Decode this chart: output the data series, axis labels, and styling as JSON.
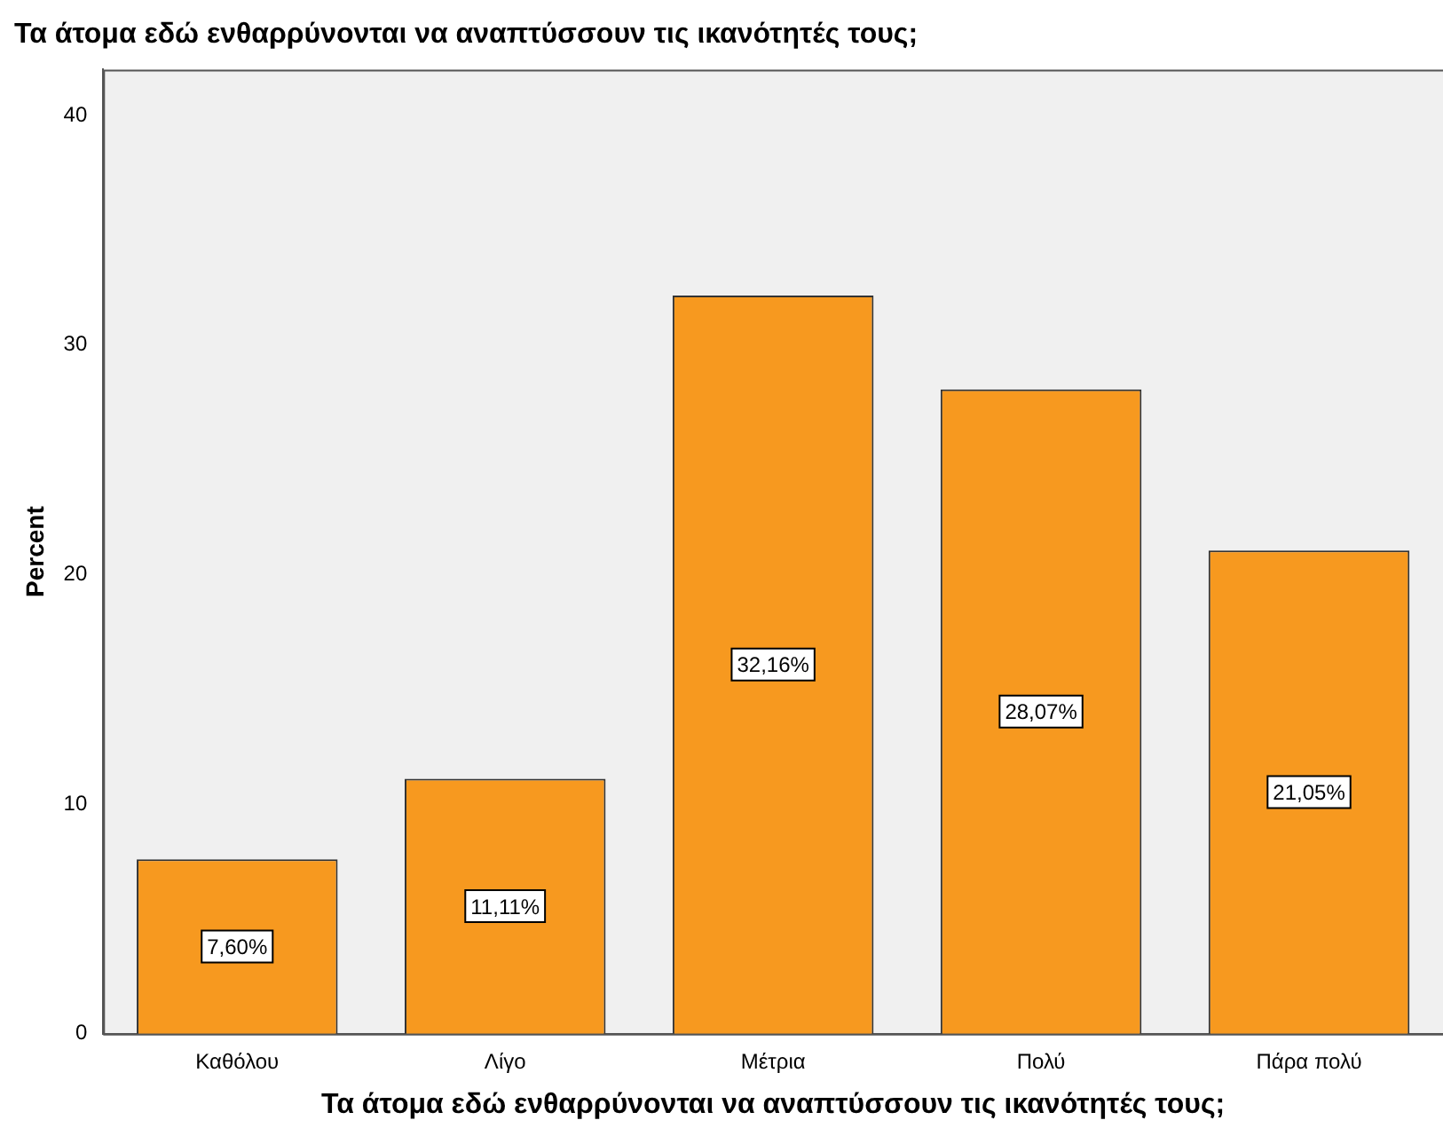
{
  "chart_data": {
    "type": "bar",
    "title": "Τα άτομα εδώ ενθαρρύνονται να αναπτύσσουν τις ικανότητές τους;",
    "xlabel": "Τα άτομα εδώ ενθαρρύνονται να αναπτύσσουν τις ικανότητές τους;",
    "ylabel": "Percent",
    "categories": [
      "Καθόλου",
      "Λίγο",
      "Μέτρια",
      "Πολύ",
      "Πάρα πολύ"
    ],
    "values": [
      7.6,
      11.11,
      32.16,
      28.07,
      21.05
    ],
    "value_labels": [
      "7,60%",
      "11,11%",
      "32,16%",
      "28,07%",
      "21,05%"
    ],
    "color": "#f7991f",
    "ylim": [
      0,
      42
    ],
    "yticks": [
      0,
      10,
      20,
      30,
      40
    ],
    "grid": false,
    "legend": false
  }
}
